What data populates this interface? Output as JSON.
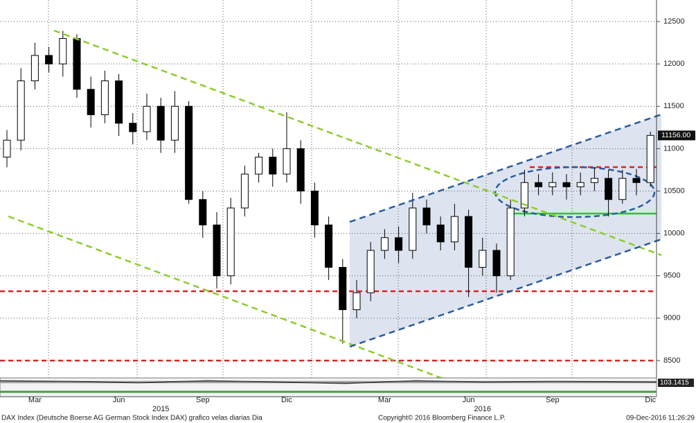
{
  "chart_data": {
    "type": "candlestick",
    "categories": [
      null,
      null,
      "Mar",
      null,
      null,
      null,
      null,
      null,
      "Jun",
      null,
      null,
      null,
      null,
      null,
      "Sep",
      null,
      null,
      null,
      null,
      null,
      "Dic",
      null,
      null,
      null,
      null,
      null,
      null,
      "Mar",
      null,
      null,
      null,
      null,
      null,
      "Jun",
      null,
      null,
      null,
      null,
      null,
      "Sep",
      null,
      null,
      null,
      null,
      null,
      null,
      "Dic"
    ],
    "years": [
      "2015",
      "2016"
    ],
    "open": [
      10900,
      11100,
      11800,
      12100,
      12000,
      12300,
      11700,
      11400,
      11800,
      11300,
      11200,
      11500,
      11100,
      11500,
      10400,
      10100,
      9500,
      10300,
      10700,
      10900,
      10700,
      11000,
      10500,
      10100,
      9600,
      9100,
      9300,
      9800,
      9950,
      9800,
      10300,
      10100,
      9900,
      10200,
      9600,
      9800,
      9500,
      10300,
      10600,
      10550,
      10600,
      10550,
      10600,
      10650,
      10400,
      10650,
      10600
    ],
    "high": [
      11220,
      11950,
      12250,
      12200,
      12390,
      12350,
      11850,
      11920,
      11880,
      11420,
      11650,
      11600,
      11680,
      11560,
      10500,
      10250,
      10420,
      10800,
      10950,
      11000,
      11430,
      11100,
      10600,
      10200,
      9700,
      9450,
      9900,
      10050,
      10080,
      10480,
      10400,
      10200,
      10350,
      10280,
      9950,
      9880,
      10400,
      10750,
      10700,
      10720,
      10700,
      10720,
      10780,
      10750,
      10750,
      10760,
      11200
    ],
    "low": [
      10780,
      10980,
      11700,
      11900,
      11850,
      11600,
      11250,
      11300,
      11150,
      11050,
      11100,
      10950,
      10950,
      10350,
      9950,
      9350,
      9400,
      10200,
      10600,
      10550,
      10600,
      10350,
      9950,
      9450,
      8700,
      9000,
      9200,
      9700,
      9650,
      9700,
      10000,
      9800,
      9800,
      9250,
      9500,
      9300,
      9450,
      10200,
      10450,
      10450,
      10400,
      10450,
      10500,
      10200,
      10350,
      10450,
      10550
    ],
    "close": [
      11100,
      11800,
      12100,
      12000,
      12300,
      11700,
      11400,
      11800,
      11300,
      11200,
      11500,
      11100,
      11500,
      10400,
      10100,
      9500,
      10300,
      10700,
      10900,
      10700,
      11000,
      10500,
      10100,
      9600,
      9100,
      9300,
      9800,
      9950,
      9800,
      10300,
      10100,
      9900,
      10200,
      9600,
      9800,
      9500,
      10300,
      10600,
      10550,
      10600,
      10550,
      10600,
      10650,
      10400,
      10650,
      10600,
      11156
    ],
    "last_price_label": "11156.00",
    "indicator_label": "103.1415",
    "ylim": [
      8295,
      12754
    ],
    "yticks": [
      8500,
      9000,
      9500,
      10000,
      10500,
      11000,
      11500,
      12000,
      12500
    ],
    "grid": true,
    "footer_left": "DAX Index (Deutsche Boerse AG German Stock Index DAX) grafico velas diarias  Dia",
    "footer_center": "Copyright© 2016 Bloomberg Finance L.P.",
    "footer_right": "09-Dec-2016 11:26:29"
  }
}
